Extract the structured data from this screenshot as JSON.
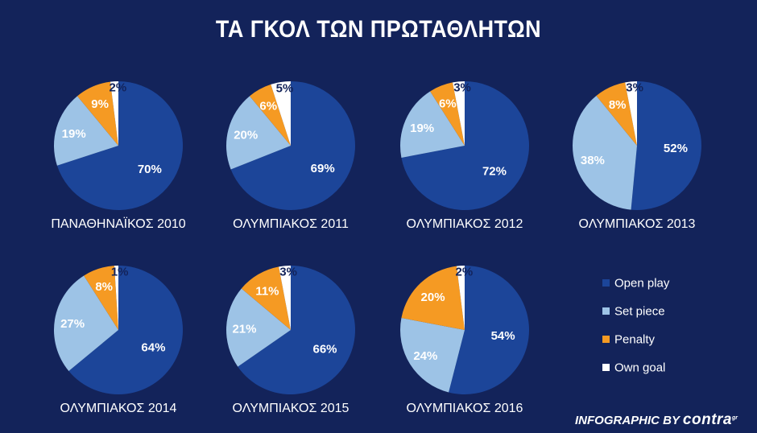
{
  "title": "ΤΑ ΓΚΟΛ ΤΩΝ ΠΡΩΤΑΘΛΗΤΩΝ",
  "footer": {
    "prefix": "INFOGRAPHIC BY",
    "brand": "contra",
    "brand_suffix": "gr"
  },
  "colors": {
    "background": "#13235a",
    "Open play": "#1c4599",
    "Set piece": "#9dc3e6",
    "Penalty": "#f59a23",
    "Own goal": "#ffffff"
  },
  "chart_data": {
    "type": "pie",
    "title": "ΤΑ ΓΚΟΛ ΤΩΝ ΠΡΩΤΑΘΛΗΤΩΝ",
    "legend": [
      "Open play",
      "Set piece",
      "Penalty",
      "Own goal"
    ],
    "legend_placement": "bottom-right",
    "pies": [
      {
        "label": "ΠΑΝΑΘΗΝΑΪΚΟΣ 2010",
        "values": [
          70,
          19,
          9,
          2
        ]
      },
      {
        "label": "ΟΛΥΜΠΙΑΚΟΣ 2011",
        "values": [
          69,
          20,
          6,
          5
        ]
      },
      {
        "label": "ΟΛΥΜΠΙΑΚΟΣ 2012",
        "values": [
          72,
          19,
          6,
          3
        ]
      },
      {
        "label": "ΟΛΥΜΠΙΑΚΟΣ 2013",
        "values": [
          52,
          38,
          8,
          3
        ]
      },
      {
        "label": "ΟΛΥΜΠΙΑΚΟΣ 2014",
        "values": [
          64,
          27,
          8,
          1
        ]
      },
      {
        "label": "ΟΛΥΜΠΙΑΚΟΣ 2015",
        "values": [
          66,
          21,
          11,
          3
        ]
      },
      {
        "label": "ΟΛΥΜΠΙΑΚΟΣ 2016",
        "values": [
          54,
          24,
          20,
          2
        ]
      }
    ]
  }
}
